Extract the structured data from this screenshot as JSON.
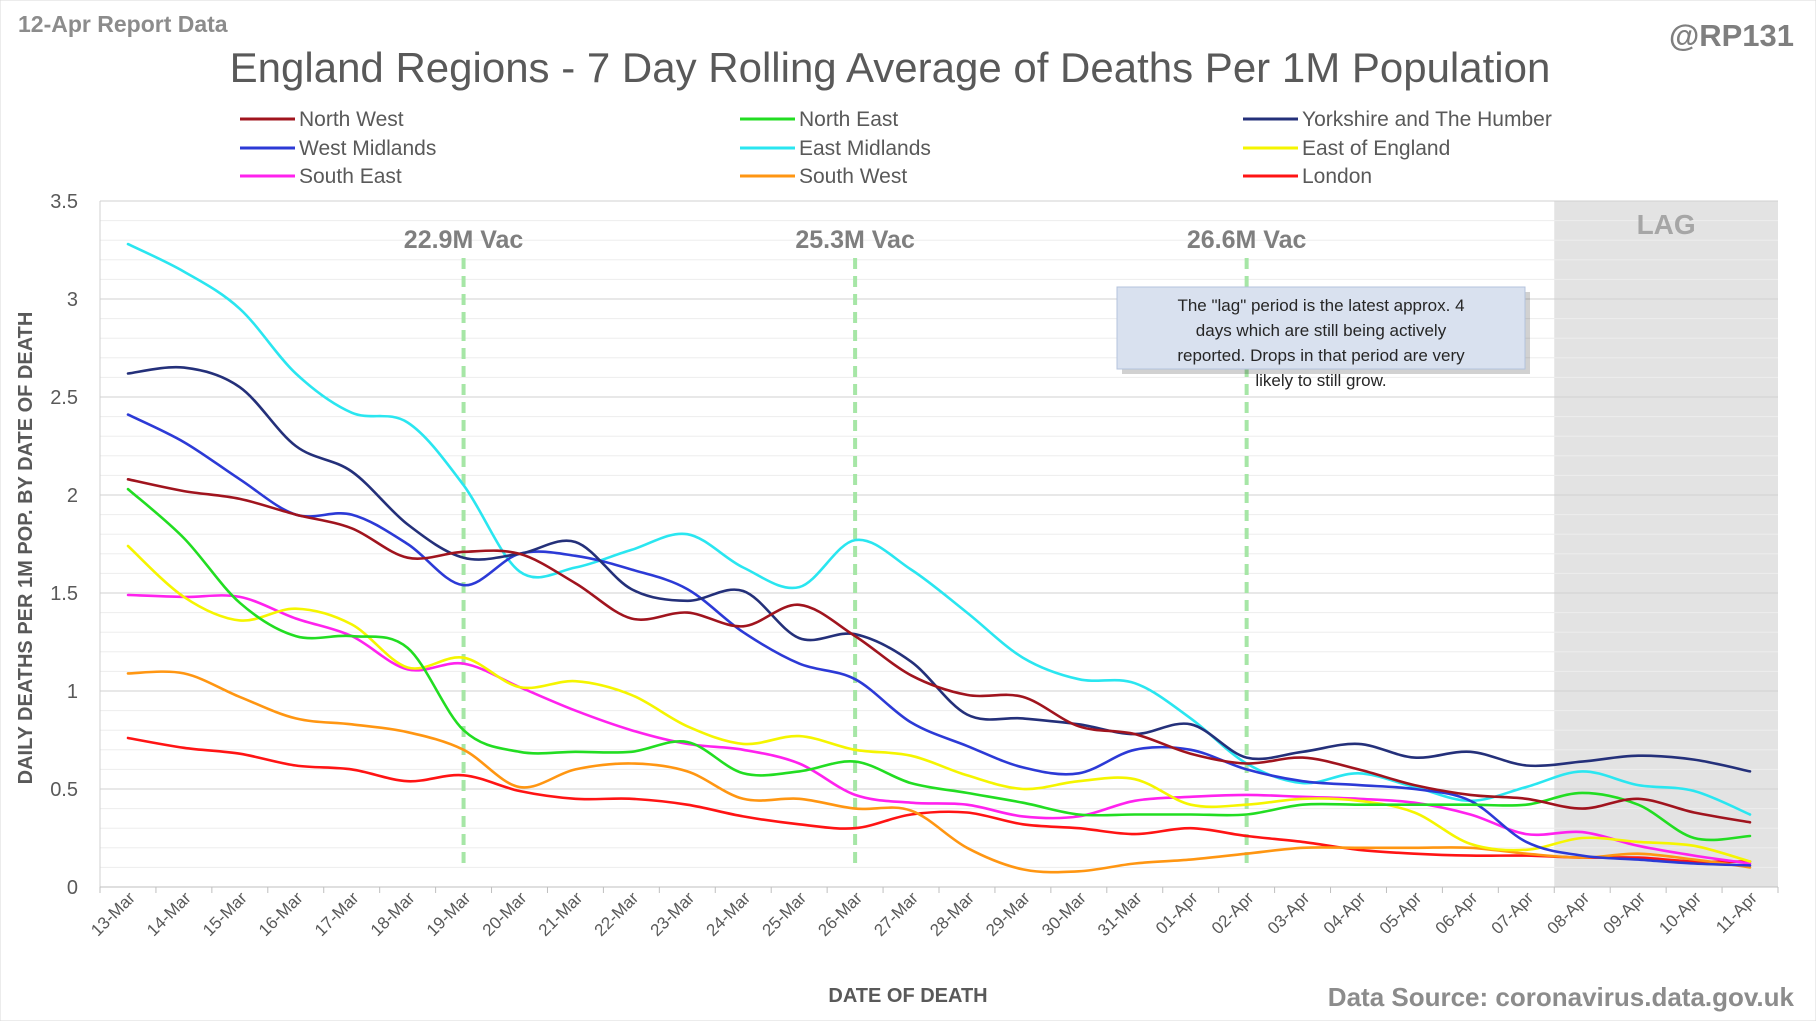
{
  "header": {
    "report_date": "12-Apr Report Data",
    "handle": "@RP131"
  },
  "footer": {
    "source": "Data Source: coronavirus.data.gov.uk"
  },
  "chart_data": {
    "type": "line",
    "title": "England Regions - 7 Day Rolling Average of Deaths Per 1M Population",
    "xlabel": "DATE OF DEATH",
    "ylabel": "DAILY DEATHS PER 1M POP. BY DATE OF DEATH",
    "ylim": [
      0,
      3.5
    ],
    "yticks": [
      0,
      0.5,
      1,
      1.5,
      2,
      2.5,
      3,
      3.5
    ],
    "ytick_labels": [
      "0",
      "0.5",
      "1",
      "1.5",
      "2",
      "2.5",
      "3",
      "3.5"
    ],
    "grid": true,
    "legend_position": "top",
    "x": [
      "13-Mar",
      "14-Mar",
      "15-Mar",
      "16-Mar",
      "17-Mar",
      "18-Mar",
      "19-Mar",
      "20-Mar",
      "21-Mar",
      "22-Mar",
      "23-Mar",
      "24-Mar",
      "25-Mar",
      "26-Mar",
      "27-Mar",
      "28-Mar",
      "29-Mar",
      "30-Mar",
      "31-Mar",
      "01-Apr",
      "02-Apr",
      "03-Apr",
      "04-Apr",
      "05-Apr",
      "06-Apr",
      "07-Apr",
      "08-Apr",
      "09-Apr",
      "10-Apr",
      "11-Apr"
    ],
    "series": [
      {
        "name": "North West",
        "color": "#a0141e",
        "values": [
          2.08,
          2.02,
          1.98,
          1.9,
          1.83,
          1.68,
          1.71,
          1.7,
          1.55,
          1.37,
          1.4,
          1.33,
          1.44,
          1.28,
          1.08,
          0.98,
          0.97,
          0.82,
          0.78,
          0.68,
          0.63,
          0.66,
          0.6,
          0.52,
          0.47,
          0.45,
          0.4,
          0.45,
          0.38,
          0.33
        ]
      },
      {
        "name": "North East",
        "color": "#22dd22",
        "values": [
          2.03,
          1.78,
          1.45,
          1.28,
          1.28,
          1.22,
          0.8,
          0.69,
          0.69,
          0.69,
          0.74,
          0.58,
          0.59,
          0.64,
          0.53,
          0.48,
          0.43,
          0.37,
          0.37,
          0.37,
          0.37,
          0.42,
          0.42,
          0.42,
          0.42,
          0.42,
          0.48,
          0.42,
          0.25,
          0.26
        ]
      },
      {
        "name": "Yorkshire and The Humber",
        "color": "#24307a",
        "values": [
          2.62,
          2.65,
          2.55,
          2.25,
          2.12,
          1.85,
          1.68,
          1.7,
          1.76,
          1.52,
          1.46,
          1.51,
          1.27,
          1.29,
          1.15,
          0.88,
          0.86,
          0.83,
          0.78,
          0.83,
          0.66,
          0.69,
          0.73,
          0.66,
          0.69,
          0.62,
          0.64,
          0.67,
          0.65,
          0.59
        ]
      },
      {
        "name": "West Midlands",
        "color": "#2c3ad6",
        "values": [
          2.41,
          2.27,
          2.08,
          1.9,
          1.9,
          1.75,
          1.54,
          1.7,
          1.69,
          1.62,
          1.52,
          1.3,
          1.14,
          1.06,
          0.84,
          0.72,
          0.61,
          0.58,
          0.7,
          0.7,
          0.6,
          0.54,
          0.52,
          0.5,
          0.44,
          0.23,
          0.16,
          0.14,
          0.12,
          0.11
        ]
      },
      {
        "name": "East Midlands",
        "color": "#2ae6f0",
        "values": [
          3.28,
          3.14,
          2.95,
          2.62,
          2.42,
          2.37,
          2.05,
          1.61,
          1.63,
          1.72,
          1.8,
          1.63,
          1.53,
          1.77,
          1.62,
          1.4,
          1.17,
          1.06,
          1.04,
          0.86,
          0.63,
          0.53,
          0.58,
          0.51,
          0.44,
          0.51,
          0.59,
          0.52,
          0.49,
          0.37
        ]
      },
      {
        "name": "East of England",
        "color": "#f5f500",
        "values": [
          1.74,
          1.48,
          1.36,
          1.42,
          1.34,
          1.12,
          1.17,
          1.02,
          1.05,
          0.98,
          0.82,
          0.73,
          0.77,
          0.7,
          0.67,
          0.57,
          0.5,
          0.54,
          0.55,
          0.42,
          0.42,
          0.45,
          0.44,
          0.38,
          0.22,
          0.19,
          0.25,
          0.23,
          0.21,
          0.13
        ]
      },
      {
        "name": "South East",
        "color": "#ff22ee",
        "values": [
          1.49,
          1.48,
          1.48,
          1.37,
          1.28,
          1.11,
          1.14,
          1.02,
          0.9,
          0.8,
          0.73,
          0.7,
          0.63,
          0.47,
          0.43,
          0.42,
          0.36,
          0.36,
          0.44,
          0.46,
          0.47,
          0.46,
          0.45,
          0.43,
          0.37,
          0.27,
          0.28,
          0.21,
          0.16,
          0.12
        ]
      },
      {
        "name": "South West",
        "color": "#ff9612",
        "values": [
          1.09,
          1.09,
          0.97,
          0.86,
          0.83,
          0.79,
          0.7,
          0.51,
          0.6,
          0.63,
          0.59,
          0.45,
          0.45,
          0.4,
          0.39,
          0.2,
          0.09,
          0.08,
          0.12,
          0.14,
          0.17,
          0.2,
          0.2,
          0.2,
          0.2,
          0.17,
          0.15,
          0.17,
          0.14,
          0.1
        ]
      },
      {
        "name": "London",
        "color": "#ff1414",
        "values": [
          0.76,
          0.71,
          0.68,
          0.62,
          0.6,
          0.54,
          0.57,
          0.49,
          0.45,
          0.45,
          0.42,
          0.36,
          0.32,
          0.3,
          0.37,
          0.38,
          0.32,
          0.3,
          0.27,
          0.3,
          0.26,
          0.23,
          0.19,
          0.17,
          0.16,
          0.16,
          0.15,
          0.15,
          0.13,
          0.13
        ]
      }
    ],
    "vaccine_markers": [
      {
        "label": "22.9M Vac",
        "x": "19-Mar",
        "x_index": 6
      },
      {
        "label": "25.3M Vac",
        "x": "26-Mar",
        "x_index": 13
      },
      {
        "label": "26.6M Vac",
        "x": "02-Apr",
        "x_index": 20
      }
    ],
    "lag_region": {
      "label": "LAG",
      "start": "08-Apr",
      "start_index": 26
    },
    "annotation": "The \"lag\" period is the latest approx. 4 days which are still being actively reported. Drops in that period are very likely to still grow."
  }
}
